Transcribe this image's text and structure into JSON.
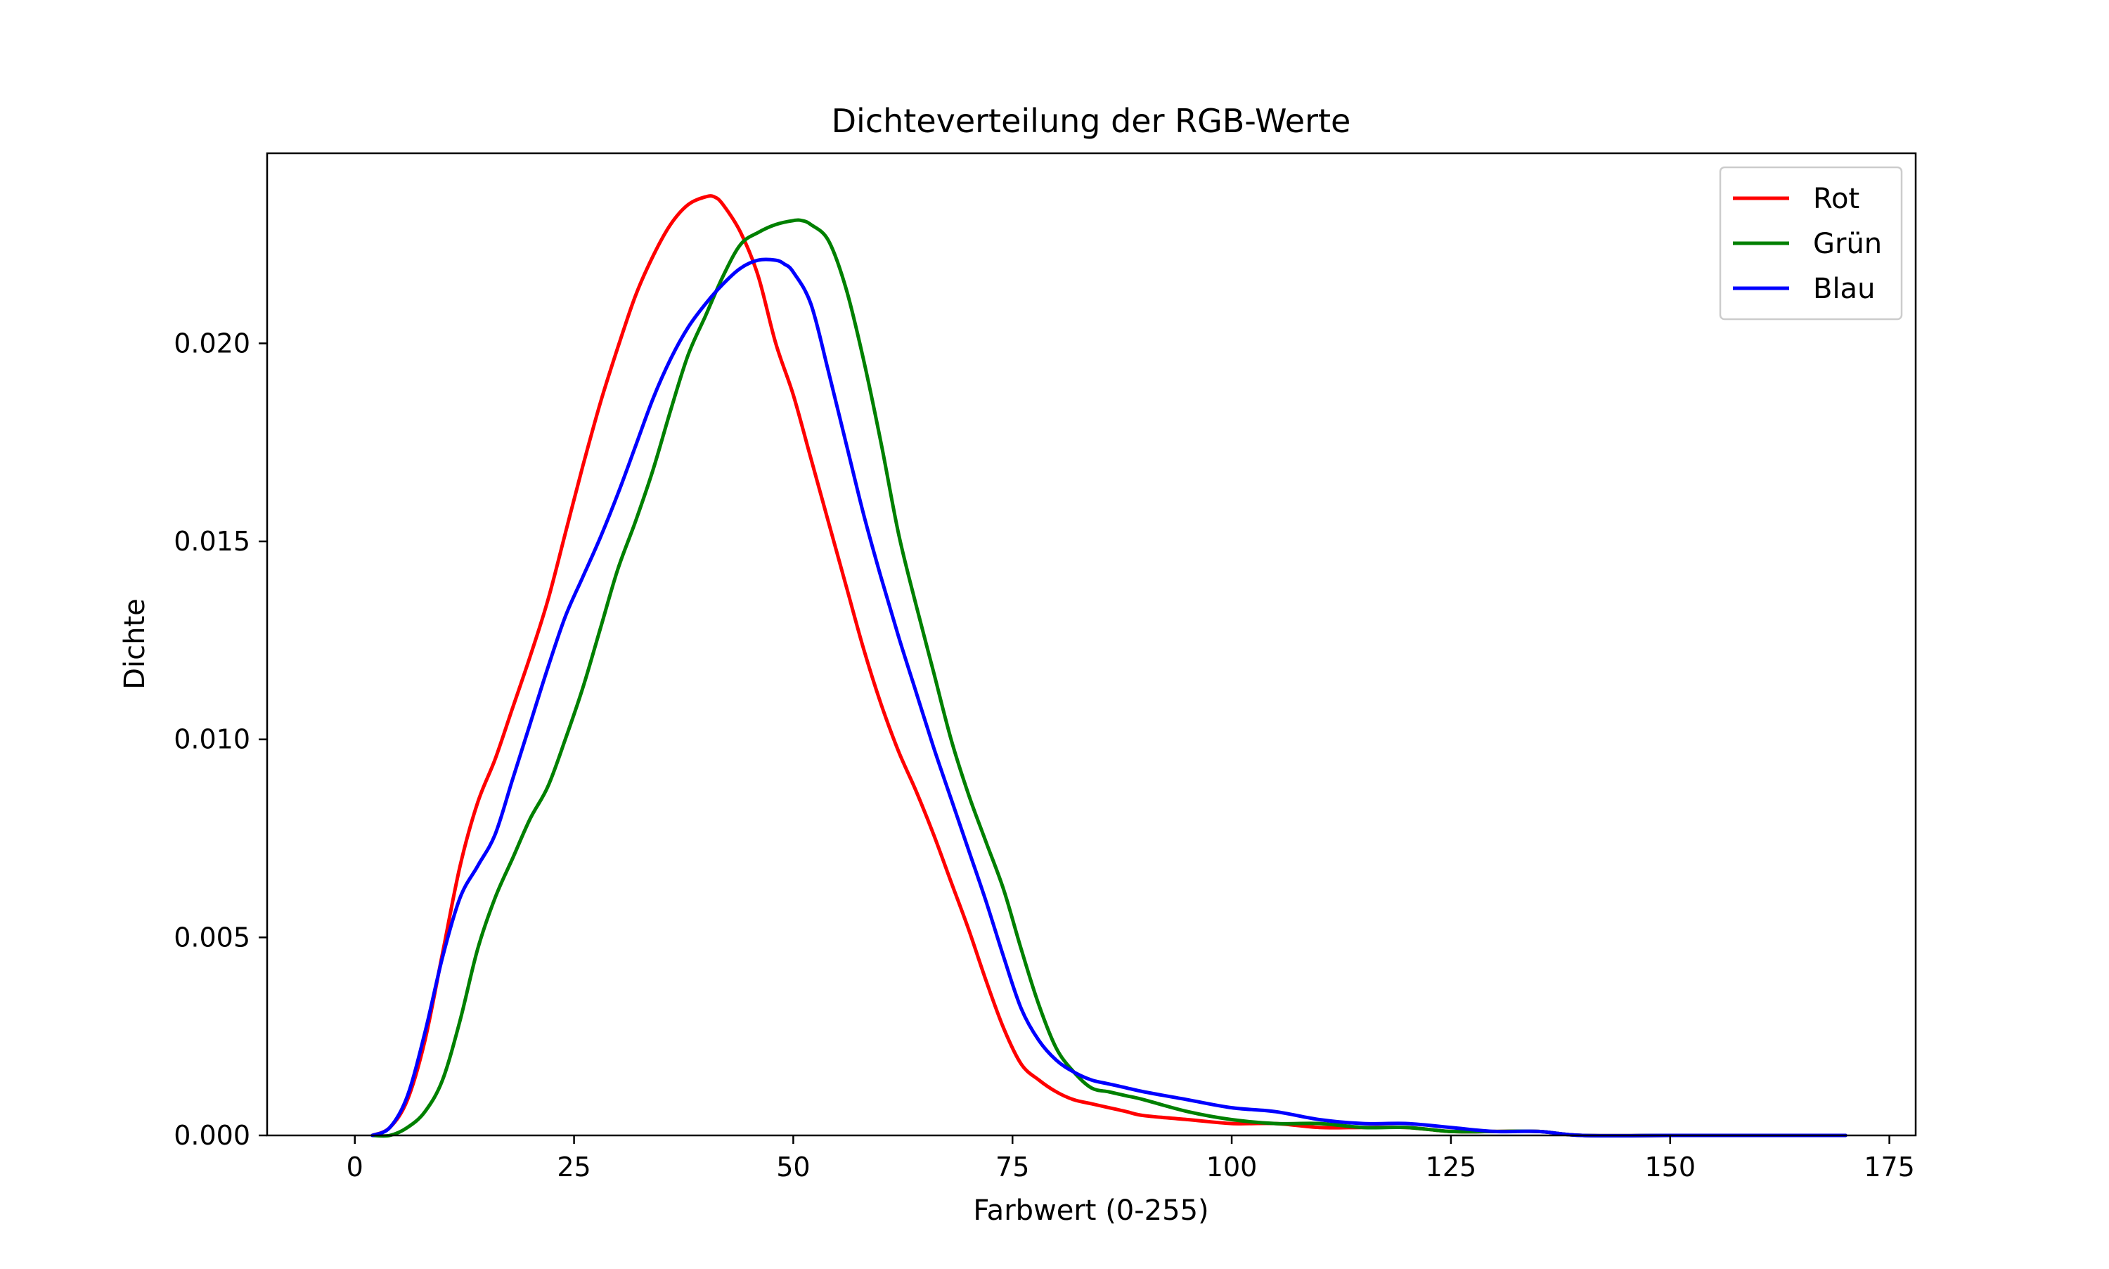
{
  "chart_data": {
    "type": "line",
    "title": "Dichteverteilung der RGB-Werte",
    "xlabel": "Farbwert (0-255)",
    "ylabel": "Dichte",
    "xlim": [
      -10,
      178
    ],
    "ylim": [
      0,
      0.0248
    ],
    "xticks": [
      0,
      25,
      50,
      75,
      100,
      125,
      150,
      175
    ],
    "xtick_labels": [
      "0",
      "25",
      "50",
      "75",
      "100",
      "125",
      "150",
      "175"
    ],
    "yticks": [
      0.0,
      0.005,
      0.01,
      0.015,
      0.02
    ],
    "ytick_labels": [
      "0.000",
      "0.005",
      "0.010",
      "0.015",
      "0.020"
    ],
    "grid": false,
    "legend_position": "top-right",
    "series": [
      {
        "name": "Rot",
        "color": "#ff0000",
        "x": [
          2,
          4,
          6,
          8,
          10,
          12,
          14,
          16,
          18,
          20,
          22,
          24,
          26,
          28,
          30,
          32,
          34,
          36,
          38,
          40,
          41,
          42,
          44,
          46,
          48,
          50,
          52,
          54,
          56,
          58,
          60,
          62,
          64,
          66,
          68,
          70,
          72,
          74,
          76,
          78,
          80,
          82,
          84,
          86,
          88,
          90,
          95,
          100,
          105,
          110,
          115,
          120,
          125,
          130,
          135,
          140,
          150,
          160,
          170
        ],
        "y": [
          0.0,
          0.0002,
          0.0009,
          0.0024,
          0.0046,
          0.0068,
          0.0084,
          0.0095,
          0.0108,
          0.0121,
          0.0135,
          0.0152,
          0.0169,
          0.0185,
          0.0199,
          0.0212,
          0.0222,
          0.023,
          0.0235,
          0.0237,
          0.0237,
          0.0235,
          0.0228,
          0.0217,
          0.02,
          0.0187,
          0.0171,
          0.0155,
          0.0139,
          0.0123,
          0.0109,
          0.0097,
          0.0087,
          0.0076,
          0.0064,
          0.0052,
          0.0039,
          0.0027,
          0.0018,
          0.0014,
          0.0011,
          0.0009,
          0.0008,
          0.0007,
          0.0006,
          0.0005,
          0.0004,
          0.0003,
          0.0003,
          0.0002,
          0.0002,
          0.0002,
          0.0001,
          0.0001,
          0.0001,
          0.0,
          0.0,
          0.0,
          0.0
        ]
      },
      {
        "name": "Grün",
        "color": "#008000",
        "x": [
          2,
          4,
          6,
          8,
          10,
          12,
          14,
          16,
          18,
          20,
          22,
          24,
          26,
          28,
          30,
          32,
          34,
          36,
          38,
          40,
          42,
          44,
          46,
          48,
          50,
          51,
          52,
          54,
          56,
          58,
          60,
          62,
          64,
          66,
          68,
          70,
          72,
          74,
          76,
          78,
          80,
          82,
          84,
          86,
          88,
          90,
          95,
          100,
          105,
          110,
          115,
          120,
          125,
          130,
          135,
          140,
          150,
          160,
          170
        ],
        "y": [
          0.0,
          0.0,
          0.0002,
          0.0006,
          0.0014,
          0.0029,
          0.0047,
          0.006,
          0.007,
          0.008,
          0.0088,
          0.01,
          0.0113,
          0.0128,
          0.0143,
          0.0155,
          0.0168,
          0.0183,
          0.0197,
          0.0207,
          0.0217,
          0.0225,
          0.0228,
          0.023,
          0.0231,
          0.0231,
          0.023,
          0.0226,
          0.0214,
          0.0196,
          0.0175,
          0.0152,
          0.0134,
          0.0117,
          0.01,
          0.0086,
          0.0074,
          0.0062,
          0.0047,
          0.0033,
          0.0022,
          0.0016,
          0.0012,
          0.0011,
          0.001,
          0.0009,
          0.0006,
          0.0004,
          0.0003,
          0.0003,
          0.0002,
          0.0002,
          0.0001,
          0.0001,
          0.0001,
          0.0,
          0.0,
          0.0,
          0.0
        ]
      },
      {
        "name": "Blau",
        "color": "#0000ff",
        "x": [
          2,
          4,
          6,
          8,
          10,
          12,
          14,
          16,
          18,
          20,
          22,
          24,
          26,
          28,
          30,
          32,
          34,
          36,
          38,
          40,
          42,
          44,
          46,
          48,
          49,
          50,
          52,
          54,
          56,
          58,
          60,
          62,
          64,
          66,
          68,
          70,
          72,
          74,
          76,
          78,
          80,
          82,
          84,
          86,
          88,
          90,
          95,
          100,
          105,
          110,
          115,
          120,
          125,
          130,
          135,
          140,
          150,
          160,
          170
        ],
        "y": [
          0.0,
          0.0002,
          0.001,
          0.0026,
          0.0045,
          0.006,
          0.0068,
          0.0076,
          0.009,
          0.0104,
          0.0118,
          0.0131,
          0.0141,
          0.0151,
          0.0162,
          0.0174,
          0.0186,
          0.0196,
          0.0204,
          0.021,
          0.0215,
          0.0219,
          0.0221,
          0.0221,
          0.022,
          0.0218,
          0.021,
          0.0193,
          0.0175,
          0.0157,
          0.0141,
          0.0126,
          0.0112,
          0.0098,
          0.0085,
          0.0072,
          0.0059,
          0.0045,
          0.0032,
          0.0024,
          0.0019,
          0.0016,
          0.0014,
          0.0013,
          0.0012,
          0.0011,
          0.0009,
          0.0007,
          0.0006,
          0.0004,
          0.0003,
          0.0003,
          0.0002,
          0.0001,
          0.0001,
          0.0,
          0.0,
          0.0,
          0.0
        ]
      }
    ]
  }
}
